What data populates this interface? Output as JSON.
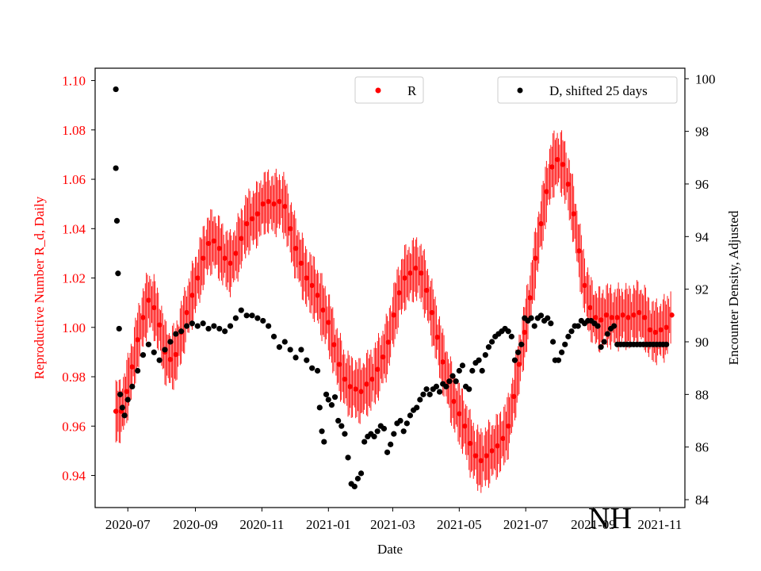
{
  "chart_data": {
    "type": "scatter",
    "title": "",
    "xlabel": "Date",
    "ylabel_left": "Reproductive Number R_d, Daily",
    "ylabel_right": "Encounter Density, Adjusted",
    "annotation": "NH",
    "x_ticks": [
      "2020-07",
      "2020-09",
      "2020-11",
      "2021-01",
      "2021-03",
      "2021-05",
      "2021-07",
      "2021-09",
      "2021-11"
    ],
    "y_left_ticks": [
      "0.94",
      "0.96",
      "0.98",
      "1.00",
      "1.02",
      "1.04",
      "1.06",
      "1.08",
      "1.10"
    ],
    "y_right_ticks": [
      "84",
      "86",
      "88",
      "90",
      "92",
      "94",
      "96",
      "98",
      "100"
    ],
    "xlim": [
      "2020-06-01",
      "2021-11-24"
    ],
    "ylim_left": [
      0.927,
      1.105
    ],
    "ylim_right": [
      83.7,
      100.4
    ],
    "grid": false,
    "legend_r_position": "top-center",
    "legend_d_position": "top-right",
    "colors": {
      "R": "#ff0000",
      "D": "#000000",
      "axis_left": "#ff0000",
      "axis_right": "#000000"
    },
    "series": [
      {
        "name": "R",
        "axis": "left",
        "color": "#ff0000",
        "marker": "circle",
        "points": [
          [
            "2020-06-20",
            0.966
          ],
          [
            "2020-06-25",
            0.966
          ],
          [
            "2020-06-30",
            0.974
          ],
          [
            "2020-07-05",
            0.984
          ],
          [
            "2020-07-10",
            0.995
          ],
          [
            "2020-07-15",
            1.004
          ],
          [
            "2020-07-20",
            1.011
          ],
          [
            "2020-07-25",
            1.008
          ],
          [
            "2020-07-30",
            1.001
          ],
          [
            "2020-08-04",
            0.99
          ],
          [
            "2020-08-09",
            0.987
          ],
          [
            "2020-08-14",
            0.989
          ],
          [
            "2020-08-19",
            0.998
          ],
          [
            "2020-08-24",
            1.006
          ],
          [
            "2020-08-29",
            1.013
          ],
          [
            "2020-09-03",
            1.02
          ],
          [
            "2020-09-08",
            1.028
          ],
          [
            "2020-09-13",
            1.034
          ],
          [
            "2020-09-18",
            1.035
          ],
          [
            "2020-09-23",
            1.032
          ],
          [
            "2020-09-28",
            1.028
          ],
          [
            "2020-10-03",
            1.026
          ],
          [
            "2020-10-08",
            1.03
          ],
          [
            "2020-10-13",
            1.036
          ],
          [
            "2020-10-18",
            1.042
          ],
          [
            "2020-10-23",
            1.044
          ],
          [
            "2020-10-28",
            1.046
          ],
          [
            "2020-11-02",
            1.05
          ],
          [
            "2020-11-07",
            1.051
          ],
          [
            "2020-11-12",
            1.05
          ],
          [
            "2020-11-17",
            1.051
          ],
          [
            "2020-11-22",
            1.049
          ],
          [
            "2020-11-27",
            1.04
          ],
          [
            "2020-12-02",
            1.032
          ],
          [
            "2020-12-07",
            1.026
          ],
          [
            "2020-12-12",
            1.02
          ],
          [
            "2020-12-17",
            1.017
          ],
          [
            "2020-12-22",
            1.013
          ],
          [
            "2020-12-27",
            1.007
          ],
          [
            "2021-01-01",
            1.002
          ],
          [
            "2021-01-06",
            0.993
          ],
          [
            "2021-01-11",
            0.985
          ],
          [
            "2021-01-16",
            0.979
          ],
          [
            "2021-01-21",
            0.976
          ],
          [
            "2021-01-26",
            0.975
          ],
          [
            "2021-01-31",
            0.974
          ],
          [
            "2021-02-05",
            0.977
          ],
          [
            "2021-02-10",
            0.979
          ],
          [
            "2021-02-15",
            0.983
          ],
          [
            "2021-02-20",
            0.988
          ],
          [
            "2021-02-25",
            0.994
          ],
          [
            "2021-03-02",
            1.005
          ],
          [
            "2021-03-07",
            1.014
          ],
          [
            "2021-03-12",
            1.02
          ],
          [
            "2021-03-17",
            1.022
          ],
          [
            "2021-03-22",
            1.024
          ],
          [
            "2021-03-27",
            1.022
          ],
          [
            "2021-04-01",
            1.015
          ],
          [
            "2021-04-06",
            1.006
          ],
          [
            "2021-04-11",
            0.996
          ],
          [
            "2021-04-16",
            0.986
          ],
          [
            "2021-04-21",
            0.978
          ],
          [
            "2021-04-26",
            0.97
          ],
          [
            "2021-05-01",
            0.965
          ],
          [
            "2021-05-06",
            0.96
          ],
          [
            "2021-05-11",
            0.953
          ],
          [
            "2021-05-16",
            0.948
          ],
          [
            "2021-05-21",
            0.946
          ],
          [
            "2021-05-26",
            0.948
          ],
          [
            "2021-05-31",
            0.95
          ],
          [
            "2021-06-05",
            0.952
          ],
          [
            "2021-06-10",
            0.955
          ],
          [
            "2021-06-15",
            0.96
          ],
          [
            "2021-06-20",
            0.972
          ],
          [
            "2021-06-25",
            0.985
          ],
          [
            "2021-06-30",
            0.998
          ],
          [
            "2021-07-05",
            1.012
          ],
          [
            "2021-07-10",
            1.028
          ],
          [
            "2021-07-15",
            1.042
          ],
          [
            "2021-07-20",
            1.055
          ],
          [
            "2021-07-25",
            1.065
          ],
          [
            "2021-07-30",
            1.068
          ],
          [
            "2021-08-04",
            1.066
          ],
          [
            "2021-08-09",
            1.058
          ],
          [
            "2021-08-14",
            1.046
          ],
          [
            "2021-08-19",
            1.031
          ],
          [
            "2021-08-24",
            1.017
          ],
          [
            "2021-08-29",
            1.008
          ],
          [
            "2021-09-03",
            1.004
          ],
          [
            "2021-09-08",
            1.003
          ],
          [
            "2021-09-13",
            1.005
          ],
          [
            "2021-09-18",
            1.004
          ],
          [
            "2021-09-23",
            1.004
          ],
          [
            "2021-09-28",
            1.005
          ],
          [
            "2021-10-03",
            1.004
          ],
          [
            "2021-10-08",
            1.005
          ],
          [
            "2021-10-13",
            1.006
          ],
          [
            "2021-10-18",
            1.004
          ],
          [
            "2021-10-23",
            0.999
          ],
          [
            "2021-10-28",
            0.998
          ],
          [
            "2021-11-02",
            0.999
          ],
          [
            "2021-11-07",
            1.0
          ],
          [
            "2021-11-12",
            1.005
          ]
        ]
      },
      {
        "name": "D, shifted 25 days",
        "axis": "right",
        "color": "#000000",
        "marker": "circle",
        "points": [
          [
            "2020-06-20",
            99.6
          ],
          [
            "2020-06-20",
            96.6
          ],
          [
            "2020-06-21",
            94.6
          ],
          [
            "2020-06-22",
            92.6
          ],
          [
            "2020-06-23",
            90.5
          ],
          [
            "2020-06-24",
            88.0
          ],
          [
            "2020-06-26",
            87.5
          ],
          [
            "2020-06-28",
            87.2
          ],
          [
            "2020-07-01",
            87.8
          ],
          [
            "2020-07-05",
            88.3
          ],
          [
            "2020-07-10",
            88.9
          ],
          [
            "2020-07-15",
            89.5
          ],
          [
            "2020-07-20",
            89.9
          ],
          [
            "2020-07-25",
            89.6
          ],
          [
            "2020-07-30",
            89.3
          ],
          [
            "2020-08-04",
            89.7
          ],
          [
            "2020-08-09",
            90.0
          ],
          [
            "2020-08-14",
            90.3
          ],
          [
            "2020-08-19",
            90.4
          ],
          [
            "2020-08-24",
            90.6
          ],
          [
            "2020-08-29",
            90.7
          ],
          [
            "2020-09-03",
            90.6
          ],
          [
            "2020-09-08",
            90.7
          ],
          [
            "2020-09-13",
            90.5
          ],
          [
            "2020-09-18",
            90.6
          ],
          [
            "2020-09-23",
            90.5
          ],
          [
            "2020-09-28",
            90.4
          ],
          [
            "2020-10-03",
            90.6
          ],
          [
            "2020-10-08",
            90.9
          ],
          [
            "2020-10-13",
            91.2
          ],
          [
            "2020-10-18",
            91.0
          ],
          [
            "2020-10-23",
            91.0
          ],
          [
            "2020-10-28",
            90.9
          ],
          [
            "2020-11-02",
            90.8
          ],
          [
            "2020-11-07",
            90.6
          ],
          [
            "2020-11-12",
            90.2
          ],
          [
            "2020-11-17",
            89.8
          ],
          [
            "2020-11-22",
            90.0
          ],
          [
            "2020-11-27",
            89.7
          ],
          [
            "2020-12-02",
            89.4
          ],
          [
            "2020-12-07",
            89.7
          ],
          [
            "2020-12-12",
            89.3
          ],
          [
            "2020-12-17",
            89.0
          ],
          [
            "2020-12-22",
            88.9
          ],
          [
            "2020-12-24",
            87.5
          ],
          [
            "2020-12-26",
            86.6
          ],
          [
            "2020-12-28",
            86.2
          ],
          [
            "2020-12-30",
            88.0
          ],
          [
            "2021-01-01",
            87.8
          ],
          [
            "2021-01-04",
            87.6
          ],
          [
            "2021-01-07",
            87.9
          ],
          [
            "2021-01-10",
            87.0
          ],
          [
            "2021-01-13",
            86.8
          ],
          [
            "2021-01-16",
            86.5
          ],
          [
            "2021-01-19",
            85.6
          ],
          [
            "2021-01-22",
            84.6
          ],
          [
            "2021-01-25",
            84.5
          ],
          [
            "2021-01-28",
            84.8
          ],
          [
            "2021-01-31",
            85.0
          ],
          [
            "2021-02-03",
            86.2
          ],
          [
            "2021-02-06",
            86.4
          ],
          [
            "2021-02-09",
            86.5
          ],
          [
            "2021-02-12",
            86.4
          ],
          [
            "2021-02-15",
            86.6
          ],
          [
            "2021-02-18",
            86.8
          ],
          [
            "2021-02-21",
            86.7
          ],
          [
            "2021-02-24",
            85.8
          ],
          [
            "2021-02-27",
            86.1
          ],
          [
            "2021-03-02",
            86.5
          ],
          [
            "2021-03-05",
            86.9
          ],
          [
            "2021-03-08",
            87.0
          ],
          [
            "2021-03-11",
            86.6
          ],
          [
            "2021-03-14",
            86.9
          ],
          [
            "2021-03-17",
            87.2
          ],
          [
            "2021-03-20",
            87.4
          ],
          [
            "2021-03-23",
            87.5
          ],
          [
            "2021-03-26",
            87.8
          ],
          [
            "2021-03-29",
            88.0
          ],
          [
            "2021-04-01",
            88.2
          ],
          [
            "2021-04-04",
            88.0
          ],
          [
            "2021-04-07",
            88.2
          ],
          [
            "2021-04-10",
            88.3
          ],
          [
            "2021-04-13",
            88.1
          ],
          [
            "2021-04-16",
            88.4
          ],
          [
            "2021-04-19",
            88.3
          ],
          [
            "2021-04-22",
            88.5
          ],
          [
            "2021-04-25",
            88.7
          ],
          [
            "2021-04-28",
            88.5
          ],
          [
            "2021-05-01",
            88.9
          ],
          [
            "2021-05-04",
            89.1
          ],
          [
            "2021-05-07",
            88.3
          ],
          [
            "2021-05-10",
            88.2
          ],
          [
            "2021-05-13",
            88.9
          ],
          [
            "2021-05-16",
            89.2
          ],
          [
            "2021-05-19",
            89.3
          ],
          [
            "2021-05-22",
            88.9
          ],
          [
            "2021-05-25",
            89.5
          ],
          [
            "2021-05-28",
            89.8
          ],
          [
            "2021-05-31",
            90.0
          ],
          [
            "2021-06-03",
            90.2
          ],
          [
            "2021-06-06",
            90.3
          ],
          [
            "2021-06-09",
            90.4
          ],
          [
            "2021-06-12",
            90.5
          ],
          [
            "2021-06-15",
            90.4
          ],
          [
            "2021-06-18",
            90.2
          ],
          [
            "2021-06-21",
            89.3
          ],
          [
            "2021-06-24",
            89.6
          ],
          [
            "2021-06-27",
            89.9
          ],
          [
            "2021-06-30",
            90.9
          ],
          [
            "2021-07-03",
            90.8
          ],
          [
            "2021-07-06",
            90.9
          ],
          [
            "2021-07-09",
            90.6
          ],
          [
            "2021-07-12",
            90.9
          ],
          [
            "2021-07-15",
            91.0
          ],
          [
            "2021-07-18",
            90.8
          ],
          [
            "2021-07-21",
            90.9
          ],
          [
            "2021-07-24",
            90.7
          ],
          [
            "2021-07-26",
            90.0
          ],
          [
            "2021-07-28",
            89.3
          ],
          [
            "2021-07-31",
            89.3
          ],
          [
            "2021-08-03",
            89.6
          ],
          [
            "2021-08-06",
            89.9
          ],
          [
            "2021-08-09",
            90.2
          ],
          [
            "2021-08-12",
            90.4
          ],
          [
            "2021-08-15",
            90.6
          ],
          [
            "2021-08-18",
            90.6
          ],
          [
            "2021-08-21",
            90.8
          ],
          [
            "2021-08-24",
            90.7
          ],
          [
            "2021-08-27",
            90.8
          ],
          [
            "2021-08-30",
            90.8
          ],
          [
            "2021-09-02",
            90.7
          ],
          [
            "2021-09-05",
            90.6
          ],
          [
            "2021-09-08",
            89.8
          ],
          [
            "2021-09-11",
            90.0
          ],
          [
            "2021-09-14",
            90.3
          ],
          [
            "2021-09-17",
            90.5
          ],
          [
            "2021-09-20",
            90.6
          ],
          [
            "2021-09-23",
            89.9
          ],
          [
            "2021-09-26",
            89.9
          ],
          [
            "2021-09-29",
            89.9
          ],
          [
            "2021-10-02",
            89.9
          ],
          [
            "2021-10-05",
            89.9
          ],
          [
            "2021-10-08",
            89.9
          ],
          [
            "2021-10-11",
            89.9
          ],
          [
            "2021-10-14",
            89.9
          ],
          [
            "2021-10-17",
            89.9
          ],
          [
            "2021-10-20",
            89.9
          ],
          [
            "2021-10-23",
            89.9
          ],
          [
            "2021-10-26",
            89.9
          ],
          [
            "2021-10-29",
            89.9
          ],
          [
            "2021-11-01",
            89.9
          ],
          [
            "2021-11-04",
            89.9
          ],
          [
            "2021-11-07",
            89.9
          ]
        ]
      }
    ]
  }
}
